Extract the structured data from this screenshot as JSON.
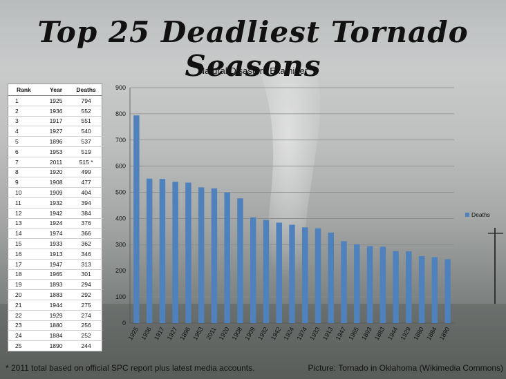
{
  "header": {
    "title": "Top 25 Deadliest Tornado Seasons",
    "subtitle": "Natural Disasters Examiner"
  },
  "table": {
    "columns": [
      "Rank",
      "Year",
      "Deaths"
    ],
    "rows": [
      [
        "1",
        "1925",
        "794"
      ],
      [
        "2",
        "1936",
        "552"
      ],
      [
        "3",
        "1917",
        "551"
      ],
      [
        "4",
        "1927",
        "540"
      ],
      [
        "5",
        "1896",
        "537"
      ],
      [
        "6",
        "1953",
        "519"
      ],
      [
        "7",
        "2011",
        "515 *"
      ],
      [
        "8",
        "1920",
        "499"
      ],
      [
        "9",
        "1908",
        "477"
      ],
      [
        "10",
        "1909",
        "404"
      ],
      [
        "11",
        "1932",
        "394"
      ],
      [
        "12",
        "1942",
        "384"
      ],
      [
        "13",
        "1924",
        "376"
      ],
      [
        "14",
        "1974",
        "366"
      ],
      [
        "15",
        "1933",
        "362"
      ],
      [
        "16",
        "1913",
        "346"
      ],
      [
        "17",
        "1947",
        "313"
      ],
      [
        "18",
        "1965",
        "301"
      ],
      [
        "19",
        "1893",
        "294"
      ],
      [
        "20",
        "1883",
        "292"
      ],
      [
        "21",
        "1944",
        "275"
      ],
      [
        "22",
        "1929",
        "274"
      ],
      [
        "23",
        "1880",
        "256"
      ],
      [
        "24",
        "1884",
        "252"
      ],
      [
        "25",
        "1890",
        "244"
      ]
    ]
  },
  "chart_data": {
    "type": "bar",
    "categories": [
      "1925",
      "1936",
      "1917",
      "1927",
      "1896",
      "1953",
      "2011",
      "1920",
      "1908",
      "1909",
      "1932",
      "1942",
      "1924",
      "1974",
      "1933",
      "1913",
      "1947",
      "1965",
      "1893",
      "1883",
      "1944",
      "1929",
      "1880",
      "1884",
      "1890"
    ],
    "series": [
      {
        "name": "Deaths",
        "color": "#4f81bd",
        "values": [
          794,
          552,
          551,
          540,
          537,
          519,
          515,
          499,
          477,
          404,
          394,
          384,
          376,
          366,
          362,
          346,
          313,
          301,
          294,
          292,
          275,
          274,
          256,
          252,
          244
        ]
      }
    ],
    "ylim": [
      0,
      900
    ],
    "yticks": [
      0,
      100,
      200,
      300,
      400,
      500,
      600,
      700,
      800,
      900
    ],
    "grid": true,
    "legend": "right",
    "xlabel": "",
    "ylabel": ""
  },
  "footer": {
    "note": "* 2011 total based on official SPC report plus latest media accounts.",
    "credit": "Picture: Tornado in Oklahoma (Wikimedia Commons)"
  }
}
